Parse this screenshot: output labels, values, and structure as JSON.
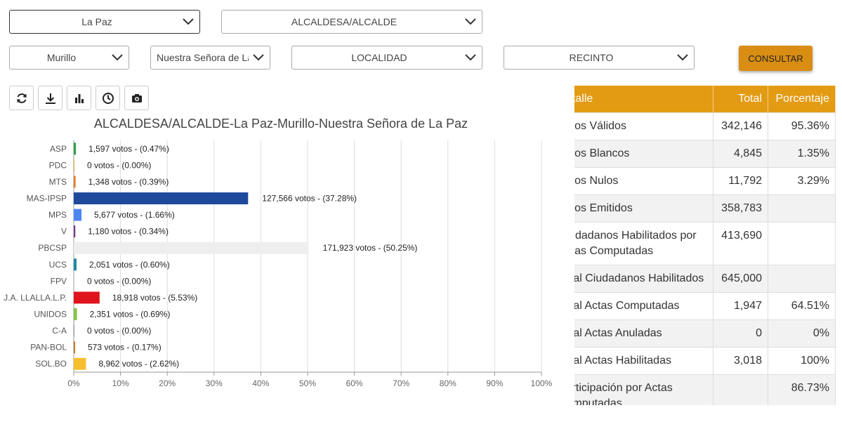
{
  "filters": {
    "departamento": "La Paz",
    "cargo": "ALCALDESA/ALCALDE",
    "provincia": "Murillo",
    "municipio": "Nuestra Señora de La Paz",
    "localidad": "LOCALIDAD",
    "recinto": "RECINTO",
    "consultar_label": "CONSULTAR"
  },
  "toolbar": {
    "icons": [
      "refresh-icon",
      "download-icon",
      "bar-chart-icon",
      "clock-icon",
      "camera-icon"
    ]
  },
  "colors": {
    "accent": "#e39b13",
    "button": "#d98d12"
  },
  "chart_data": {
    "type": "bar",
    "orientation": "horizontal",
    "title": "ALCALDESA/ALCALDE-La Paz-Murillo-Nuestra Señora de La Paz",
    "categories": [
      "ASP",
      "PDC",
      "MTS",
      "MAS-IPSP",
      "MPS",
      "V",
      "PBCSP",
      "UCS",
      "FPV",
      "J.A. LLALLA.L.P.",
      "UNIDOS",
      "C-A",
      "PAN-BOL",
      "SOL.BO"
    ],
    "values": [
      0.47,
      0.0,
      0.39,
      37.28,
      1.66,
      0.34,
      50.25,
      0.6,
      0.0,
      5.53,
      0.69,
      0.0,
      0.17,
      2.62
    ],
    "labels": [
      "1,597 votos - (0.47%)",
      "0 votos - (0.00%)",
      "1,348 votos - (0.39%)",
      "127,566 votos - (37.28%)",
      "5,677 votos - (1.66%)",
      "1,180 votos - (0.34%)",
      "171,923 votos - (50.25%)",
      "2,051 votos - (0.60%)",
      "0 votos - (0.00%)",
      "18,918 votos - (5.53%)",
      "2,351 votos - (0.69%)",
      "0 votos - (0.00%)",
      "573 votos - (0.17%)",
      "8,962 votos - (2.62%)"
    ],
    "bar_colors": [
      "#2e9e4f",
      "#f2a33a",
      "#e07a2a",
      "#1f4a9c",
      "#4d86f0",
      "#7a3a8c",
      "#eeeeee",
      "#1f8aa8",
      "#cccccc",
      "#e0141d",
      "#8bc34a",
      "#999999",
      "#cc7722",
      "#f7be2f"
    ],
    "xlim": [
      0,
      100
    ],
    "xticks": [
      "0%",
      "10%",
      "20%",
      "30%",
      "40%",
      "50%",
      "60%",
      "70%",
      "80%",
      "90%",
      "100%"
    ],
    "grid": true
  },
  "table": {
    "headers": [
      "Detalle",
      "Total",
      "Porcentaje"
    ],
    "rows": [
      [
        "Votos Válidos",
        "342,146",
        "95.36%"
      ],
      [
        "Votos Blancos",
        "4,845",
        "1.35%"
      ],
      [
        "Votos Nulos",
        "11,792",
        "3.29%"
      ],
      [
        "Votos Emitidos",
        "358,783",
        ""
      ],
      [
        "Ciudadanos Habilitados por Actas Computadas",
        "413,690",
        ""
      ],
      [
        "Total Ciudadanos Habilitados",
        "645,000",
        ""
      ],
      [
        "Total Actas Computadas",
        "1,947",
        "64.51%"
      ],
      [
        "Total Actas Anuladas",
        "0",
        "0%"
      ],
      [
        "Total Actas Habilitadas",
        "3,018",
        "100%"
      ],
      [
        "Participación por Actas Computadas",
        "",
        "86.73%"
      ]
    ]
  }
}
